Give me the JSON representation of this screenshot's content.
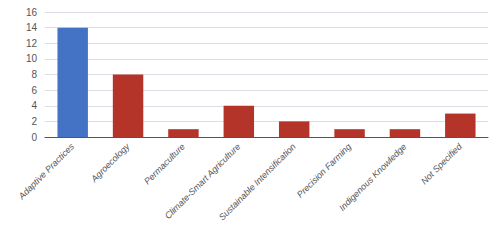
{
  "chart_data": {
    "type": "bar",
    "categories": [
      "Adaptive Practices",
      "Agroecology",
      "Permaculture",
      "Climate-Smart Agriculture",
      "Sustainable Intensification",
      "Precision Farming",
      "Indigenous Knowledge",
      "Not Specified"
    ],
    "values": [
      14,
      8,
      1,
      4,
      2,
      1,
      1,
      3
    ],
    "colors": [
      "#4472c4",
      "#b5342a",
      "#b5342a",
      "#b5342a",
      "#b5342a",
      "#b5342a",
      "#b5342a",
      "#b5342a"
    ],
    "ylim": [
      0,
      16
    ],
    "yticks": [
      0,
      2,
      4,
      6,
      8,
      10,
      12,
      14,
      16
    ],
    "grid": true
  }
}
